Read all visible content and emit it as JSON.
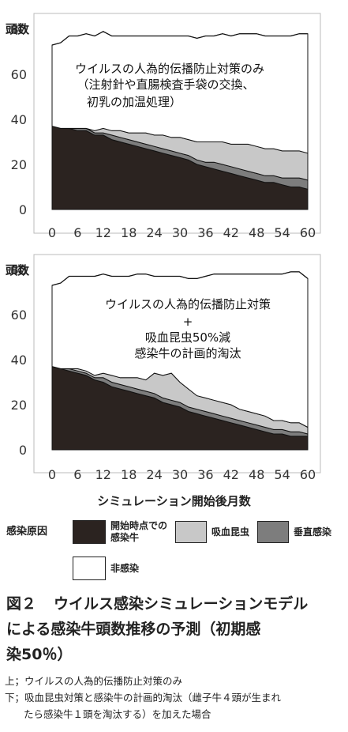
{
  "chart_data": [
    {
      "type": "area",
      "ylabel": "頭数",
      "xlabel": "シミュレーション開始後月数",
      "xlim": [
        0,
        60
      ],
      "ylim": [
        0,
        80
      ],
      "xticks": [
        0,
        6,
        12,
        18,
        24,
        30,
        36,
        42,
        48,
        54,
        60
      ],
      "yticks": [
        0,
        20,
        40,
        60,
        80
      ],
      "annotation": [
        "ウイルスの人為的伝播防止対策のみ",
        "（注射針や直腸検査手袋の交換、",
        "初乳の加温処理）"
      ],
      "stacked": true,
      "x": [
        0,
        2,
        4,
        6,
        8,
        10,
        12,
        14,
        16,
        18,
        20,
        22,
        24,
        26,
        28,
        30,
        32,
        34,
        36,
        38,
        40,
        42,
        44,
        46,
        48,
        50,
        52,
        54,
        56,
        58,
        60
      ],
      "series": [
        {
          "key": "initial",
          "values": [
            37,
            36,
            36,
            35,
            35,
            33,
            33,
            31,
            30,
            29,
            28,
            27,
            26,
            25,
            24,
            23,
            22,
            20,
            19,
            18,
            17,
            16,
            15,
            14,
            13,
            12,
            12,
            11,
            10,
            10,
            9
          ]
        },
        {
          "key": "vertical",
          "values": [
            0,
            0,
            0,
            1,
            1,
            1,
            1,
            2,
            2,
            2,
            2,
            2,
            2,
            2,
            2,
            2,
            2,
            2,
            2,
            3,
            3,
            3,
            3,
            3,
            3,
            3,
            3,
            3,
            4,
            4,
            4
          ]
        },
        {
          "key": "insect",
          "values": [
            0,
            0,
            0,
            0,
            0,
            1,
            2,
            2,
            3,
            3,
            4,
            5,
            5,
            6,
            6,
            7,
            7,
            8,
            9,
            9,
            10,
            10,
            11,
            12,
            12,
            12,
            12,
            12,
            12,
            12,
            12
          ]
        },
        {
          "key": "uninfected",
          "values": [
            36,
            38,
            41,
            41,
            42,
            42,
            43,
            42,
            42,
            43,
            43,
            43,
            44,
            44,
            45,
            45,
            46,
            46,
            47,
            47,
            48,
            48,
            49,
            49,
            50,
            50,
            50,
            51,
            51,
            52,
            53
          ]
        }
      ],
      "total": [
        73,
        74,
        77,
        77,
        78,
        77,
        79,
        77,
        77,
        77,
        77,
        77,
        77,
        77,
        77,
        77,
        77,
        76,
        77,
        77,
        78,
        77,
        78,
        78,
        78,
        77,
        77,
        77,
        77,
        78,
        78
      ]
    },
    {
      "type": "area",
      "ylabel": "頭数",
      "xlabel": "シミュレーション開始後月数",
      "xlim": [
        0,
        60
      ],
      "ylim": [
        0,
        80
      ],
      "xticks": [
        0,
        6,
        12,
        18,
        24,
        30,
        36,
        42,
        48,
        54,
        60
      ],
      "yticks": [
        0,
        20,
        40,
        60,
        80
      ],
      "annotation": [
        "ウイルスの人為的伝播防止対策",
        "+",
        "吸血昆虫50%減",
        "感染牛の計画的淘汰"
      ],
      "stacked": true,
      "x": [
        0,
        2,
        4,
        6,
        8,
        10,
        12,
        14,
        16,
        18,
        20,
        22,
        24,
        26,
        28,
        30,
        32,
        34,
        36,
        38,
        40,
        42,
        44,
        46,
        48,
        50,
        52,
        54,
        56,
        58,
        60
      ],
      "series": [
        {
          "key": "initial",
          "values": [
            37,
            36,
            35,
            34,
            33,
            31,
            30,
            28,
            27,
            26,
            25,
            24,
            23,
            21,
            20,
            19,
            17,
            16,
            15,
            14,
            13,
            12,
            11,
            10,
            9,
            8,
            7,
            7,
            6,
            6,
            6
          ]
        },
        {
          "key": "vertical",
          "values": [
            0,
            0,
            1,
            1,
            1,
            1,
            2,
            2,
            2,
            2,
            2,
            2,
            2,
            2,
            2,
            2,
            2,
            2,
            2,
            2,
            2,
            2,
            2,
            2,
            2,
            2,
            2,
            2,
            2,
            2,
            1
          ]
        },
        {
          "key": "insect",
          "values": [
            0,
            0,
            0,
            1,
            1,
            1,
            2,
            3,
            3,
            4,
            5,
            5,
            9,
            10,
            12,
            9,
            8,
            6,
            6,
            6,
            6,
            6,
            5,
            5,
            5,
            5,
            4,
            4,
            4,
            4,
            3
          ]
        },
        {
          "key": "uninfected",
          "values": [
            36,
            38,
            41,
            41,
            42,
            44,
            44,
            44,
            45,
            45,
            46,
            47,
            43,
            44,
            43,
            47,
            49,
            52,
            54,
            56,
            57,
            58,
            60,
            61,
            62,
            63,
            65,
            65,
            67,
            67,
            66
          ]
        }
      ],
      "total": [
        73,
        74,
        77,
        77,
        77,
        77,
        78,
        77,
        77,
        77,
        78,
        78,
        77,
        77,
        77,
        77,
        76,
        76,
        77,
        78,
        78,
        78,
        78,
        78,
        78,
        78,
        78,
        78,
        79,
        79,
        76
      ]
    }
  ],
  "xaxis_title": "シミュレーション開始後月数",
  "legend": {
    "title": "感染原因",
    "items": [
      {
        "key": "initial",
        "label": "開始時点での\n感染牛",
        "color": "#2b2320"
      },
      {
        "key": "insect",
        "label": "吸血昆虫",
        "color": "#c8c8c8"
      },
      {
        "key": "vertical",
        "label": "垂直感染",
        "color": "#7d7d7d"
      },
      {
        "key": "uninfected",
        "label": "非感染",
        "color": "#ffffff"
      }
    ]
  },
  "caption": {
    "fig_no": "図２",
    "line1": "ウイルス感染シミュレーションモデル",
    "line2": "による感染牛頭数推移の予測（初期感",
    "line3": "染50％）"
  },
  "notes": {
    "top": "上；ウイルスの人為的伝播防止対策のみ",
    "bottom1": "下；吸血昆虫対策と感染牛の計画的淘汰（雌子牛４頭が生まれ",
    "bottom2": "たら感染牛１頭を淘汰する）を加えた場合"
  }
}
